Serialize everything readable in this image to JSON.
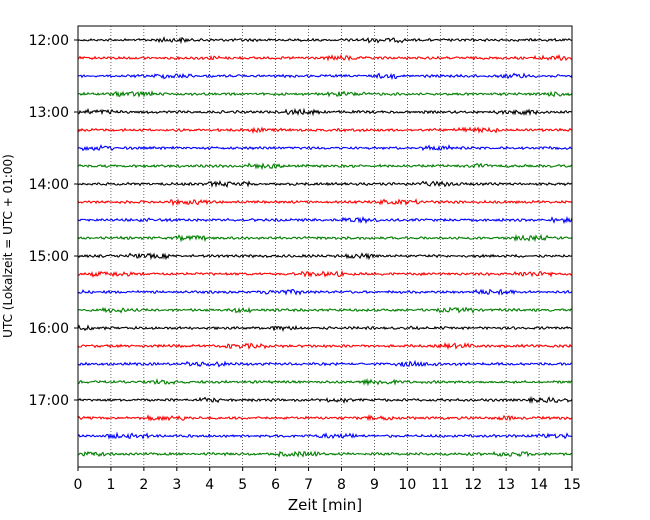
{
  "chart_data": {
    "type": "line",
    "xlabel": "Zeit  [min]",
    "ylabel": "UTC (Lokalzeit = UTC + 01:00)",
    "xlim": [
      0,
      15
    ],
    "x_ticks": [
      0,
      1,
      2,
      3,
      4,
      5,
      6,
      7,
      8,
      9,
      10,
      11,
      12,
      13,
      14,
      15
    ],
    "y_tick_labels": [
      "12:00",
      "13:00",
      "14:00",
      "15:00",
      "16:00",
      "17:00"
    ],
    "trace_start_times": [
      "12:00",
      "12:15",
      "12:30",
      "12:45",
      "13:00",
      "13:15",
      "13:30",
      "13:45",
      "14:00",
      "14:15",
      "14:30",
      "14:45",
      "15:00",
      "15:15",
      "15:30",
      "15:45",
      "16:00",
      "16:15",
      "16:30",
      "16:45",
      "17:00",
      "17:15",
      "17:30",
      "17:45"
    ],
    "trace_colors": [
      "#000000",
      "#ff0000",
      "#0000ff",
      "#008000"
    ],
    "trace_duration_min": 15,
    "vertical_grid": true,
    "grid_style": "dotted"
  }
}
